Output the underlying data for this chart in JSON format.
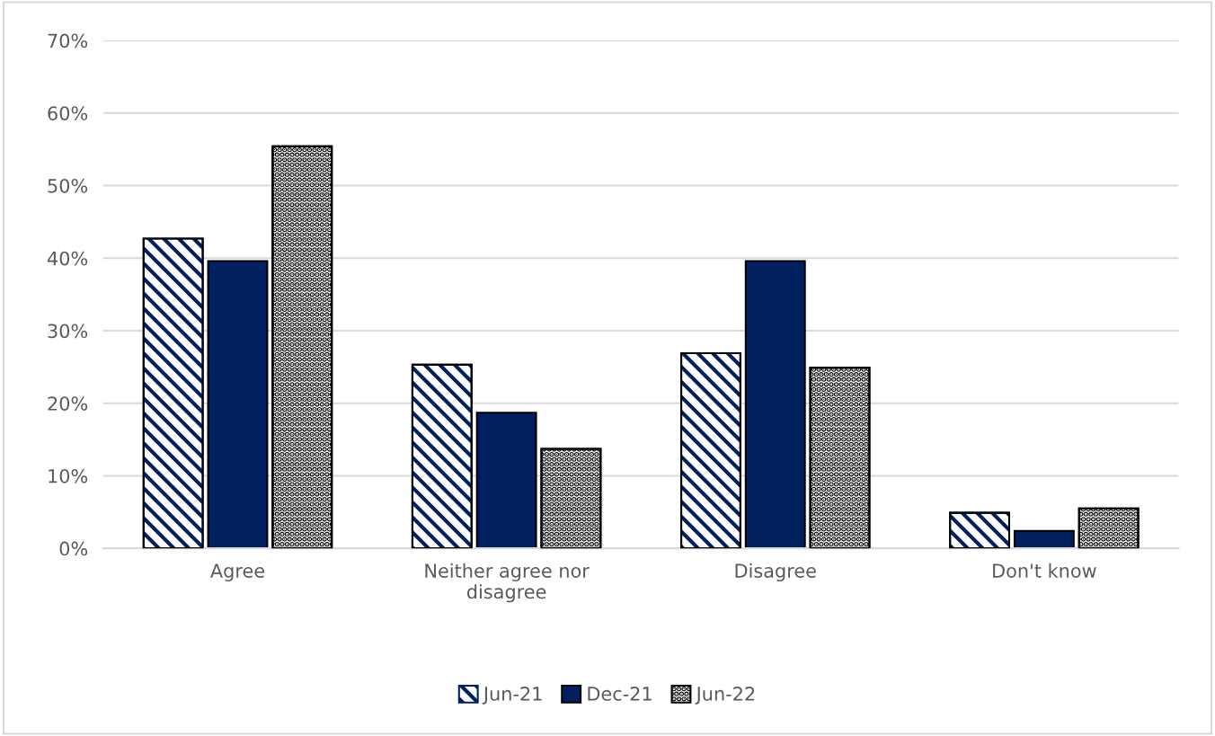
{
  "chart_data": {
    "type": "bar",
    "categories": [
      "Agree",
      "Neither agree nor disagree",
      "Disagree",
      "Don't know"
    ],
    "series": [
      {
        "name": "Jun-21",
        "color": "#002060",
        "values": [
          42.7,
          25.3,
          26.9,
          4.9
        ]
      },
      {
        "name": "Dec-21",
        "color": "#002060",
        "values": [
          39.6,
          18.7,
          39.6,
          2.4
        ]
      },
      {
        "name": "Jun-22",
        "color": "#000000",
        "values": [
          55.4,
          13.7,
          24.9,
          5.5
        ]
      }
    ],
    "ylim": [
      0,
      70
    ],
    "yticks": [
      {
        "value": 0,
        "label": "0%"
      },
      {
        "value": 10,
        "label": "10%"
      },
      {
        "value": 20,
        "label": "20%"
      },
      {
        "value": 30,
        "label": "30%"
      },
      {
        "value": 40,
        "label": "40%"
      },
      {
        "value": 50,
        "label": "50%"
      },
      {
        "value": 60,
        "label": "60%"
      },
      {
        "value": 70,
        "label": "70%"
      }
    ],
    "grid": "y",
    "legend": "bottom"
  }
}
